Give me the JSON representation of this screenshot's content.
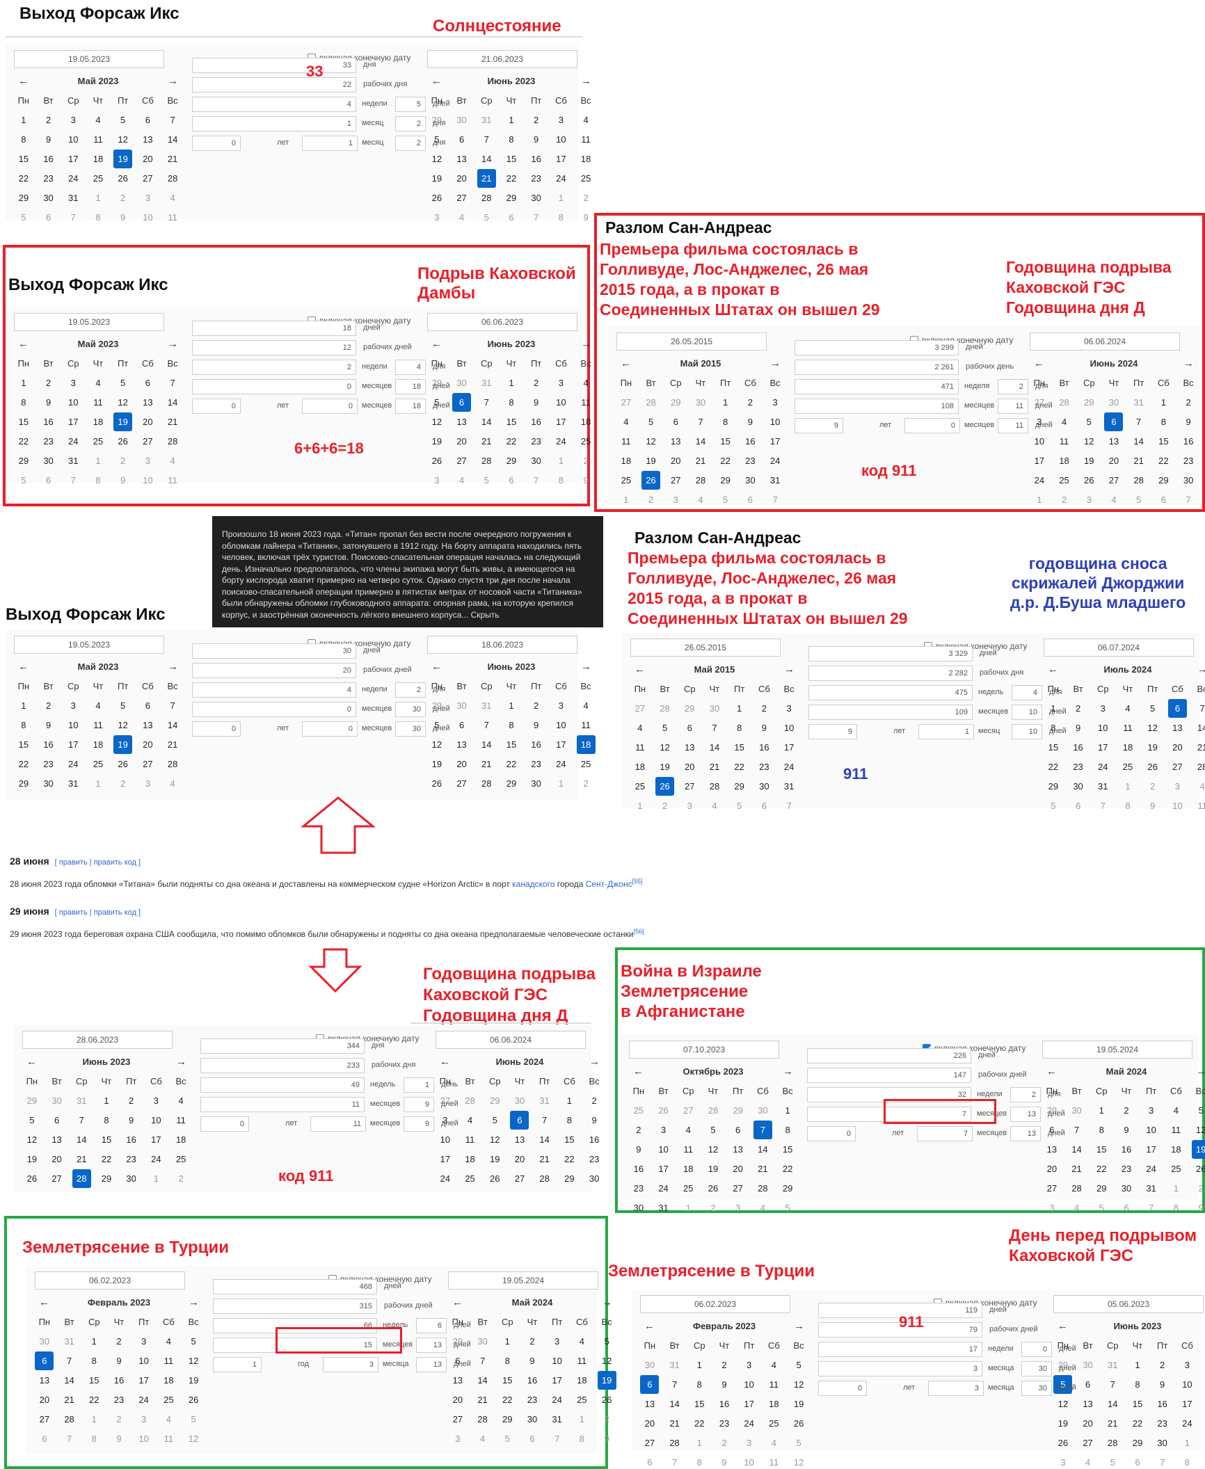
{
  "headings": {
    "f1": "Выход Форсаж Икс",
    "f2": "Выход Форсаж Икс",
    "f3": "Выход Форсаж Икс",
    "s1": "Разлом Сан-Андреас",
    "s2": "Разлом Сан-Андреас"
  },
  "captions": {
    "solstice": "Солнцестояние",
    "kakhovka_dam": "Подрыв Каховской\nДамбы",
    "premiere1": "Премьера фильма состоялась в\nГолливуде, Лос-Анджелес, 26 мая\n2015 года, а в прокат в\nСоединенных Штатах он вышел 29",
    "premiere2": "Премьера фильма состоялась в\nГолливуде, Лос-Анджелес, 26 мая\n2015 года, а в прокат в\nСоединенных Штатах он вышел 29",
    "anniv1": "Годовщина подрыва\nКаховской ГЭС\nГодовщина дня Д",
    "anniv2": "Годовщина подрыва\nКаховской ГЭС\nГодовщина дня Д",
    "georgia": "годовщина сноса\nскрижалей Джорджии\nд.р. Д.Буша младшего",
    "israel": "Война в Израиле\nЗемлетрясение\n в Афганистане",
    "turkey1": "Землетрясение в Турции",
    "turkey2": "Землетрясение в Турции",
    "day_before": "День перед подрывом\nКаховской ГЭС",
    "n33": "33",
    "sum": "6+6+6=18",
    "code1": "код 911",
    "n911a": "911",
    "code2": "код 911",
    "n911b": "911"
  },
  "titan_text": "Произошло 18 июня 2023 года. «Титан» пропал без вести после очередного погружения к обломкам лайнера «Титаник», затонувшего в 1912 году. На борту аппарата находились пять человек, включая трёх туристов. Поисково-спасательная операция началась на следующий день. Изначально предполагалось, что члены экипажа могут быть живы, а имеющегося на борту кислорода хватит примерно на четверо суток. Однако спустя три дня после начала поисково-спасательной операции примерно в пятистах метрах от носовой части «Титаника» были обнаружены обломки глубоководного аппарата: опорная рама, на которую крепился корпус, и заострённая оконечность лёгкого внешнего корпуса... Скрыть",
  "news": {
    "d28": "28 июня",
    "d29": "29 июня",
    "edit": "[ править | править код ]",
    "t28a": "28 июня 2023 года обломки «Титана» были подняты со дна океана и доставлены на коммерческом судне «Horizon Arctic» в порт ",
    "t28link1": "канадского",
    "t28b": " города ",
    "t28link2": "Сент-Джонс",
    "t28ref": "[55]",
    "t29": "29 июня 2023 года береговая охрана США сообщила, что помимо обломков были обнаружены и подняты со дна океана предполагаемые человеческие останки",
    "t29ref": "[56]"
  },
  "weekdays": [
    "Пн",
    "Вт",
    "Ср",
    "Чт",
    "Пт",
    "Сб",
    "Вс"
  ],
  "checkbox_label": "включая конечную дату",
  "colors": {
    "accent_red": "#e8202a",
    "accent_green": "#22aa44",
    "selected_day": "#0a66c8"
  },
  "widgets": [
    {
      "id": "w1",
      "d1": "19.05.2023",
      "d2": "21.06.2023",
      "checked": false,
      "calA": {
        "title": "Май 2023",
        "start": 0,
        "days": 31,
        "prevDays": 30,
        "rows": 6,
        "sel": 19
      },
      "calB": {
        "title": "Июнь 2023",
        "start": 3,
        "days": 30,
        "prevDays": 31,
        "rows": 6,
        "sel": 21
      },
      "rows": [
        [
          "",
          "",
          "33",
          "дня"
        ],
        [
          "",
          "",
          "22",
          "рабочих дня"
        ],
        [
          "4",
          "недели",
          "5",
          "дней"
        ],
        [
          "1",
          "месяц",
          "2",
          "дня"
        ],
        [
          "0",
          "лет",
          "1",
          "месяц",
          "2",
          "дня"
        ]
      ]
    },
    {
      "id": "w2",
      "d1": "19.05.2023",
      "d2": "06.06.2023",
      "checked": false,
      "calA": {
        "title": "Май 2023",
        "start": 0,
        "days": 31,
        "prevDays": 30,
        "rows": 6,
        "sel": 19
      },
      "calB": {
        "title": "Июнь 2023",
        "start": 3,
        "days": 30,
        "prevDays": 31,
        "rows": 6,
        "sel": 6
      },
      "rows": [
        [
          "",
          "",
          "18",
          "дней"
        ],
        [
          "",
          "",
          "12",
          "рабочих дней"
        ],
        [
          "2",
          "недели",
          "4",
          "дня"
        ],
        [
          "0",
          "месяцев",
          "18",
          "дней"
        ],
        [
          "0",
          "лет",
          "0",
          "месяцев",
          "18",
          "дней"
        ]
      ]
    },
    {
      "id": "w3",
      "d1": "26.05.2015",
      "d2": "06.06.2024",
      "checked": false,
      "calA": {
        "title": "Май 2015",
        "start": 4,
        "days": 31,
        "prevDays": 30,
        "rows": 6,
        "sel": 26
      },
      "calB": {
        "title": "Июнь 2024",
        "start": 5,
        "days": 30,
        "prevDays": 31,
        "rows": 6,
        "sel": 6
      },
      "rows": [
        [
          "",
          "",
          "3 299",
          "дней"
        ],
        [
          "",
          "",
          "2 261",
          "рабочих день"
        ],
        [
          "471",
          "неделя",
          "2",
          "дня"
        ],
        [
          "108",
          "месяцев",
          "11",
          "дней"
        ],
        [
          "9",
          "лет",
          "0",
          "месяцев",
          "11",
          "дней"
        ]
      ]
    },
    {
      "id": "w4",
      "d1": "19.05.2023",
      "d2": "18.06.2023",
      "checked": false,
      "calA": {
        "title": "Май 2023",
        "start": 0,
        "days": 31,
        "prevDays": 30,
        "rows": 5,
        "sel": 19
      },
      "calB": {
        "title": "Июнь 2023",
        "start": 3,
        "days": 30,
        "prevDays": 31,
        "rows": 5,
        "sel": 18
      },
      "rows": [
        [
          "",
          "",
          "30",
          "дней"
        ],
        [
          "",
          "",
          "20",
          "рабочих дней"
        ],
        [
          "4",
          "недели",
          "2",
          "дня"
        ],
        [
          "0",
          "месяцев",
          "30",
          "дней"
        ],
        [
          "0",
          "лет",
          "0",
          "месяцев",
          "30",
          "дней"
        ]
      ]
    },
    {
      "id": "w5",
      "d1": "26.05.2015",
      "d2": "06.07.2024",
      "checked": false,
      "calA": {
        "title": "Май 2015",
        "start": 4,
        "days": 31,
        "prevDays": 30,
        "rows": 6,
        "sel": 26
      },
      "calB": {
        "title": "Июль 2024",
        "start": 0,
        "days": 31,
        "prevDays": 30,
        "rows": 6,
        "sel": 6
      },
      "rows": [
        [
          "",
          "",
          "3 329",
          "дней"
        ],
        [
          "",
          "",
          "2 282",
          "рабочих дня"
        ],
        [
          "475",
          "недель",
          "4",
          "дня"
        ],
        [
          "109",
          "месяцев",
          "10",
          "дней"
        ],
        [
          "9",
          "лет",
          "1",
          "месяц",
          "10",
          "дней"
        ]
      ]
    },
    {
      "id": "w6",
      "d1": "28.06.2023",
      "d2": "06.06.2024",
      "checked": false,
      "calA": {
        "title": "Июнь 2023",
        "start": 3,
        "days": 30,
        "prevDays": 31,
        "rows": 5,
        "sel": 28
      },
      "calB": {
        "title": "Июнь 2024",
        "start": 5,
        "days": 30,
        "prevDays": 31,
        "rows": 5,
        "sel": 6
      },
      "rows": [
        [
          "",
          "",
          "344",
          "дня"
        ],
        [
          "",
          "",
          "233",
          "рабочих дня"
        ],
        [
          "49",
          "недель",
          "1",
          "день"
        ],
        [
          "11",
          "месяцев",
          "9",
          "дней"
        ],
        [
          "0",
          "лет",
          "11",
          "месяцев",
          "9",
          "дней"
        ]
      ]
    },
    {
      "id": "w7",
      "d1": "07.10.2023",
      "d2": "19.05.2024",
      "checked": true,
      "calA": {
        "title": "Октябрь 2023",
        "start": 6,
        "days": 31,
        "prevDays": 30,
        "rows": 6,
        "sel": 7
      },
      "calB": {
        "title": "Май 2024",
        "start": 2,
        "days": 31,
        "prevDays": 30,
        "rows": 6,
        "sel": 19
      },
      "rows": [
        [
          "",
          "",
          "226",
          "дней"
        ],
        [
          "",
          "",
          "147",
          "рабочих дней"
        ],
        [
          "32",
          "недели",
          "2",
          "дня"
        ],
        [
          "7",
          "месяцев",
          "13",
          "дней"
        ],
        [
          "0",
          "лет",
          "7",
          "месяцев",
          "13",
          "дней"
        ]
      ]
    },
    {
      "id": "w8",
      "d1": "06.02.2023",
      "d2": "19.05.2024",
      "checked": false,
      "calA": {
        "title": "Февраль 2023",
        "start": 2,
        "days": 28,
        "prevDays": 31,
        "rows": 6,
        "sel": 6
      },
      "calB": {
        "title": "Май 2024",
        "start": 2,
        "days": 31,
        "prevDays": 30,
        "rows": 6,
        "sel": 19
      },
      "rows": [
        [
          "",
          "",
          "468",
          "дней"
        ],
        [
          "",
          "",
          "315",
          "рабочих дней"
        ],
        [
          "66",
          "недель",
          "6",
          "дней"
        ],
        [
          "15",
          "месяцев",
          "13",
          "дней"
        ],
        [
          "1",
          "год",
          "3",
          "месяца",
          "13",
          "дней"
        ]
      ]
    },
    {
      "id": "w9",
      "d1": "06.02.2023",
      "d2": "05.06.2023",
      "checked": false,
      "calA": {
        "title": "Февраль 2023",
        "start": 2,
        "days": 28,
        "prevDays": 31,
        "rows": 6,
        "sel": 6
      },
      "calB": {
        "title": "Июнь 2023",
        "start": 3,
        "days": 30,
        "prevDays": 31,
        "rows": 6,
        "sel": 5
      },
      "rows": [
        [
          "",
          "",
          "119",
          "дней"
        ],
        [
          "",
          "",
          "79",
          "рабочих дней"
        ],
        [
          "17",
          "недели",
          "0",
          "дней"
        ],
        [
          "3",
          "месяца",
          "30",
          "дней"
        ],
        [
          "0",
          "лет",
          "3",
          "месяца",
          "30",
          "дней"
        ]
      ]
    }
  ]
}
